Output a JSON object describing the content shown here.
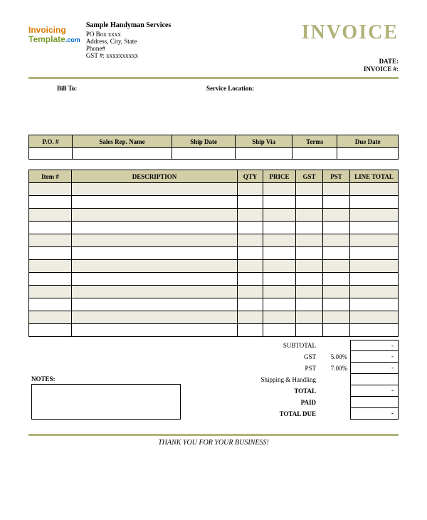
{
  "logo": {
    "line1": "Invoicing",
    "line2": "Template",
    "line3": ".com"
  },
  "company": {
    "name": "Sample Handyman Services",
    "po": "PO Box xxxx",
    "addr": "Address, City, State",
    "phone": "Phone#",
    "gst": "GST #: xxxxxxxxxx"
  },
  "title": "INVOICE",
  "meta": {
    "date_label": "DATE:",
    "invno_label": "INVOICE #:"
  },
  "addr": {
    "billto_label": "Bill To:",
    "svc_label": "Service Location:"
  },
  "info_headers": [
    "P.O. #",
    "Sales Rep. Name",
    "Ship Date",
    "Ship Via",
    "Terms",
    "Due Date"
  ],
  "item_headers": [
    "Item #",
    "DESCRIPTION",
    "QTY",
    "PRICE",
    "GST",
    "PST",
    "LINE TOTAL"
  ],
  "item_row_count": 12,
  "totals": {
    "subtotal": {
      "label": "SUBTOTAL",
      "value": "-"
    },
    "gst": {
      "label": "GST",
      "pct": "5.00%",
      "value": "-"
    },
    "pst": {
      "label": "PST",
      "pct": "7.00%",
      "value": "-"
    },
    "ship": {
      "label": "Shipping & Handling",
      "value": ""
    },
    "total": {
      "label": "TOTAL",
      "value": "-"
    },
    "paid": {
      "label": "PAID",
      "value": ""
    },
    "due": {
      "label": "TOTAL DUE",
      "value": "-"
    }
  },
  "notes_label": "NOTES:",
  "thanks": "THANK YOU FOR YOUR BUSINESS!",
  "colors": {
    "olive": "#b0b27a",
    "header_bg": "#d2cfa8",
    "stripe": "#eeece0"
  }
}
